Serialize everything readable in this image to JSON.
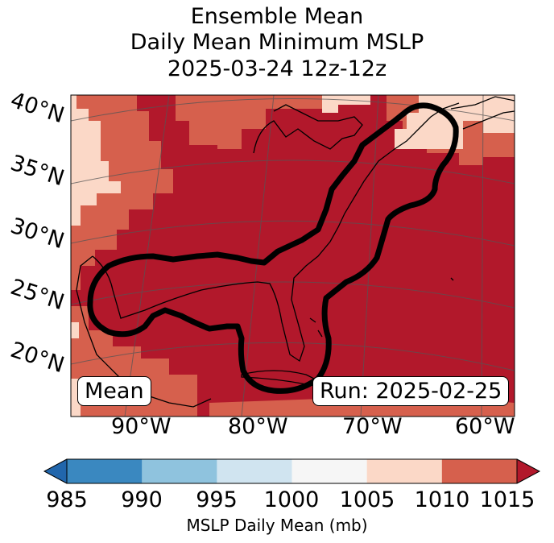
{
  "title": {
    "line1": "Ensemble Mean",
    "line2": "Daily Mean Minimum MSLP",
    "line3": "2025-03-24 12z-12z"
  },
  "map": {
    "lat_labels": [
      "40°N",
      "35°N",
      "30°N",
      "25°N",
      "20°N"
    ],
    "lon_labels": [
      "90°W",
      "80°W",
      "70°W",
      "60°W"
    ],
    "mean_box": "Mean",
    "run_box": "Run: 2025-02-25"
  },
  "colorbar": {
    "ticks": [
      "985",
      "990",
      "995",
      "1000",
      "1005",
      "1010",
      "1015"
    ],
    "colors": [
      "#3a88c0",
      "#8fc3de",
      "#d0e4f0",
      "#f6f6f6",
      "#fbd8c7",
      "#d6604d",
      "#b2182b"
    ],
    "underflow_color": "#2166ac",
    "label": "MSLP Daily Mean (mb)"
  },
  "field_colors": {
    "light": "#fbd8c7",
    "mid": "#d6604d",
    "dark": "#b2182b"
  }
}
